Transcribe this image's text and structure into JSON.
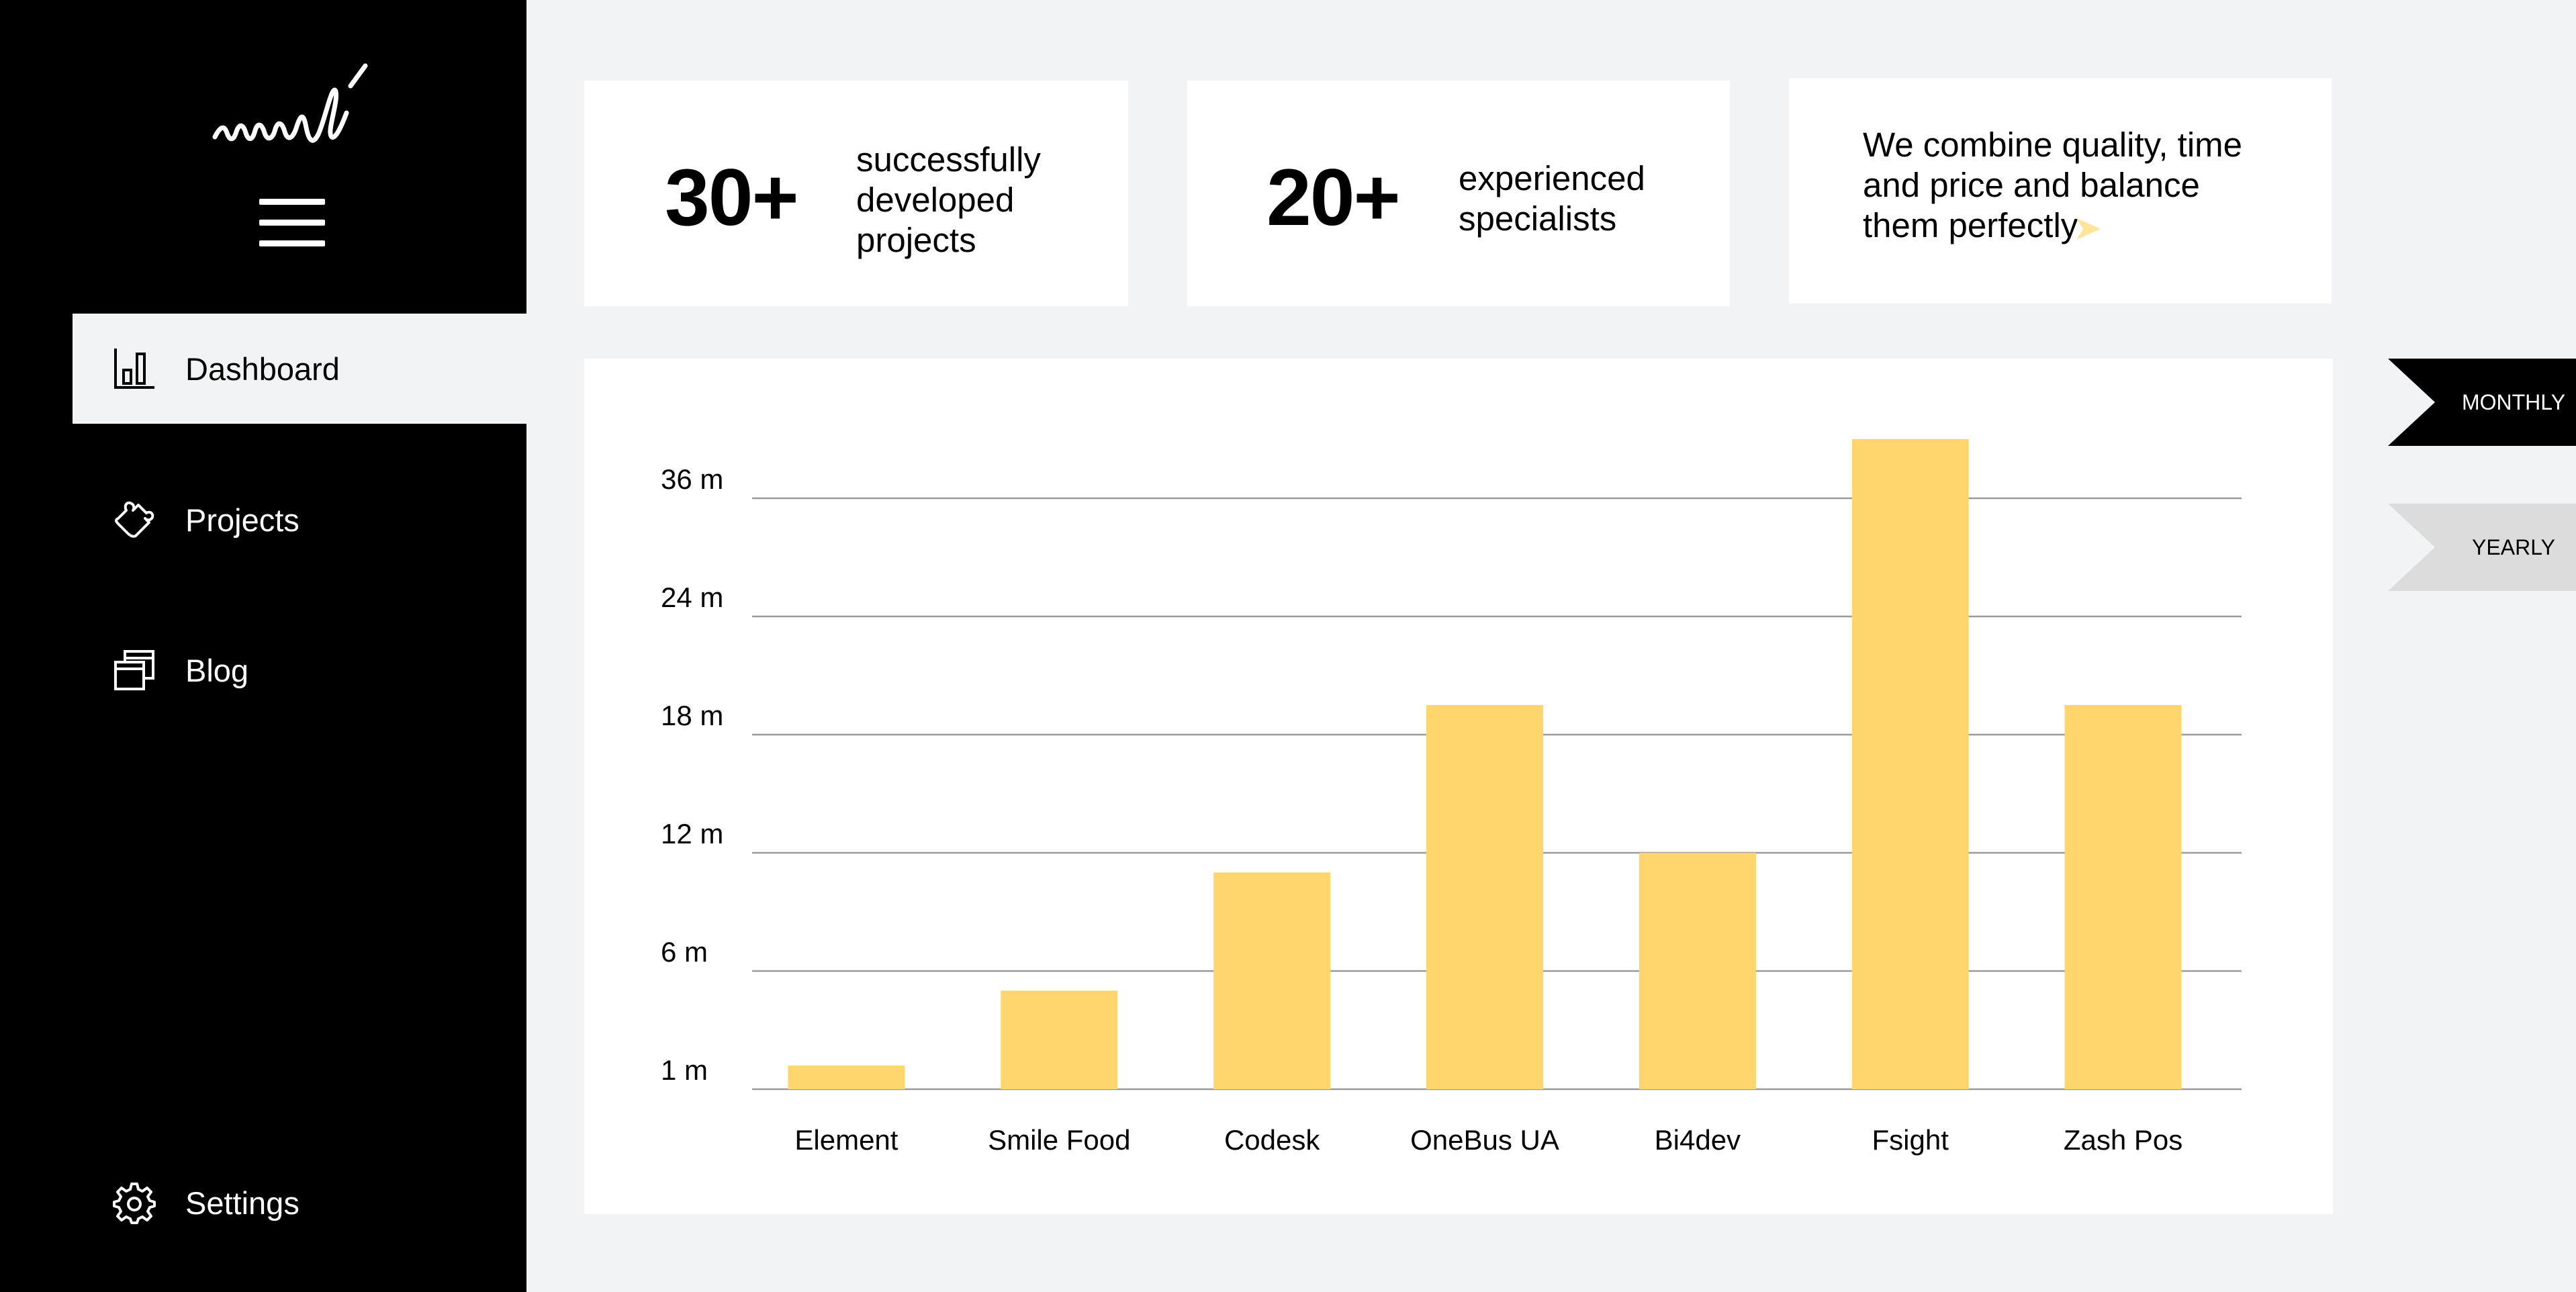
{
  "sidebar": {
    "items": [
      {
        "label": "Dashboard",
        "icon": "bar-chart-icon",
        "active": true
      },
      {
        "label": "Projects",
        "icon": "puzzle-icon",
        "active": false
      },
      {
        "label": "Blog",
        "icon": "windows-icon",
        "active": false
      }
    ],
    "settings_label": "Settings"
  },
  "stats": [
    {
      "value": "30+",
      "label_lines": [
        "successfully",
        "developed",
        "projects"
      ]
    },
    {
      "value": "20+",
      "label_lines": [
        "experienced",
        "specialists"
      ]
    }
  ],
  "tagline_lines": [
    "We combine quality, time",
    "and price and balance",
    "them perfectly"
  ],
  "period_toggle": {
    "monthly": "MONTHLY",
    "yearly": "YEARLY",
    "selected": "MONTHLY"
  },
  "colors": {
    "accent": "#ffd56e",
    "sidebar_bg": "#000000",
    "page_bg": "#f2f3f5"
  },
  "chart_data": {
    "type": "bar",
    "categories": [
      "Element",
      "Smile Food",
      "Codesk",
      "OneBus UA",
      "Bi4dev",
      "Fsight",
      "Zash Pos"
    ],
    "values": [
      2.4,
      10,
      22,
      39,
      24,
      66,
      39
    ],
    "ytick_labels": [
      "1 m",
      "6 m",
      "12 m",
      "18 m",
      "24 m",
      "36 m"
    ],
    "grid": true,
    "bar_color": "#ffd56e"
  }
}
